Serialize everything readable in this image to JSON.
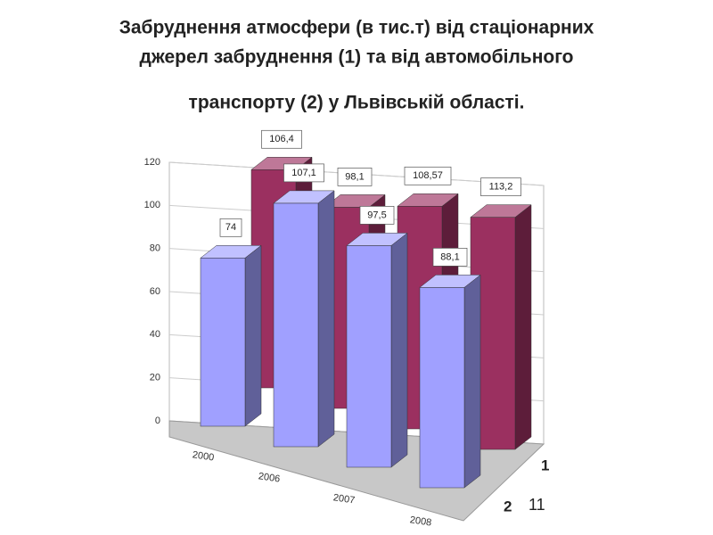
{
  "chart_data": {
    "type": "bar3d",
    "title_lines": [
      "Забруднення атмосфери (в тис.т) від стаціонарних",
      "джерел забруднення (1) та від автомобільного",
      "транспорту (2) у Львівській області."
    ],
    "categories": [
      "2000",
      "2006",
      "2007",
      "2008"
    ],
    "series": [
      {
        "name": "1",
        "color": "#9b3060",
        "values": [
          106.4,
          98.1,
          108.57,
          113.2
        ],
        "value_labels": [
          "106,4",
          "98,1",
          "108,57",
          "113,2"
        ]
      },
      {
        "name": "2",
        "color": "#a0a0ff",
        "values": [
          74,
          107.1,
          97.5,
          88.1
        ],
        "value_labels": [
          "74",
          "107,1",
          "97,5",
          "88,1"
        ]
      }
    ],
    "ylim": [
      0,
      120
    ],
    "yticks": [
      0,
      20,
      40,
      60,
      80,
      100,
      120
    ],
    "grid": true,
    "page_number": "11"
  }
}
